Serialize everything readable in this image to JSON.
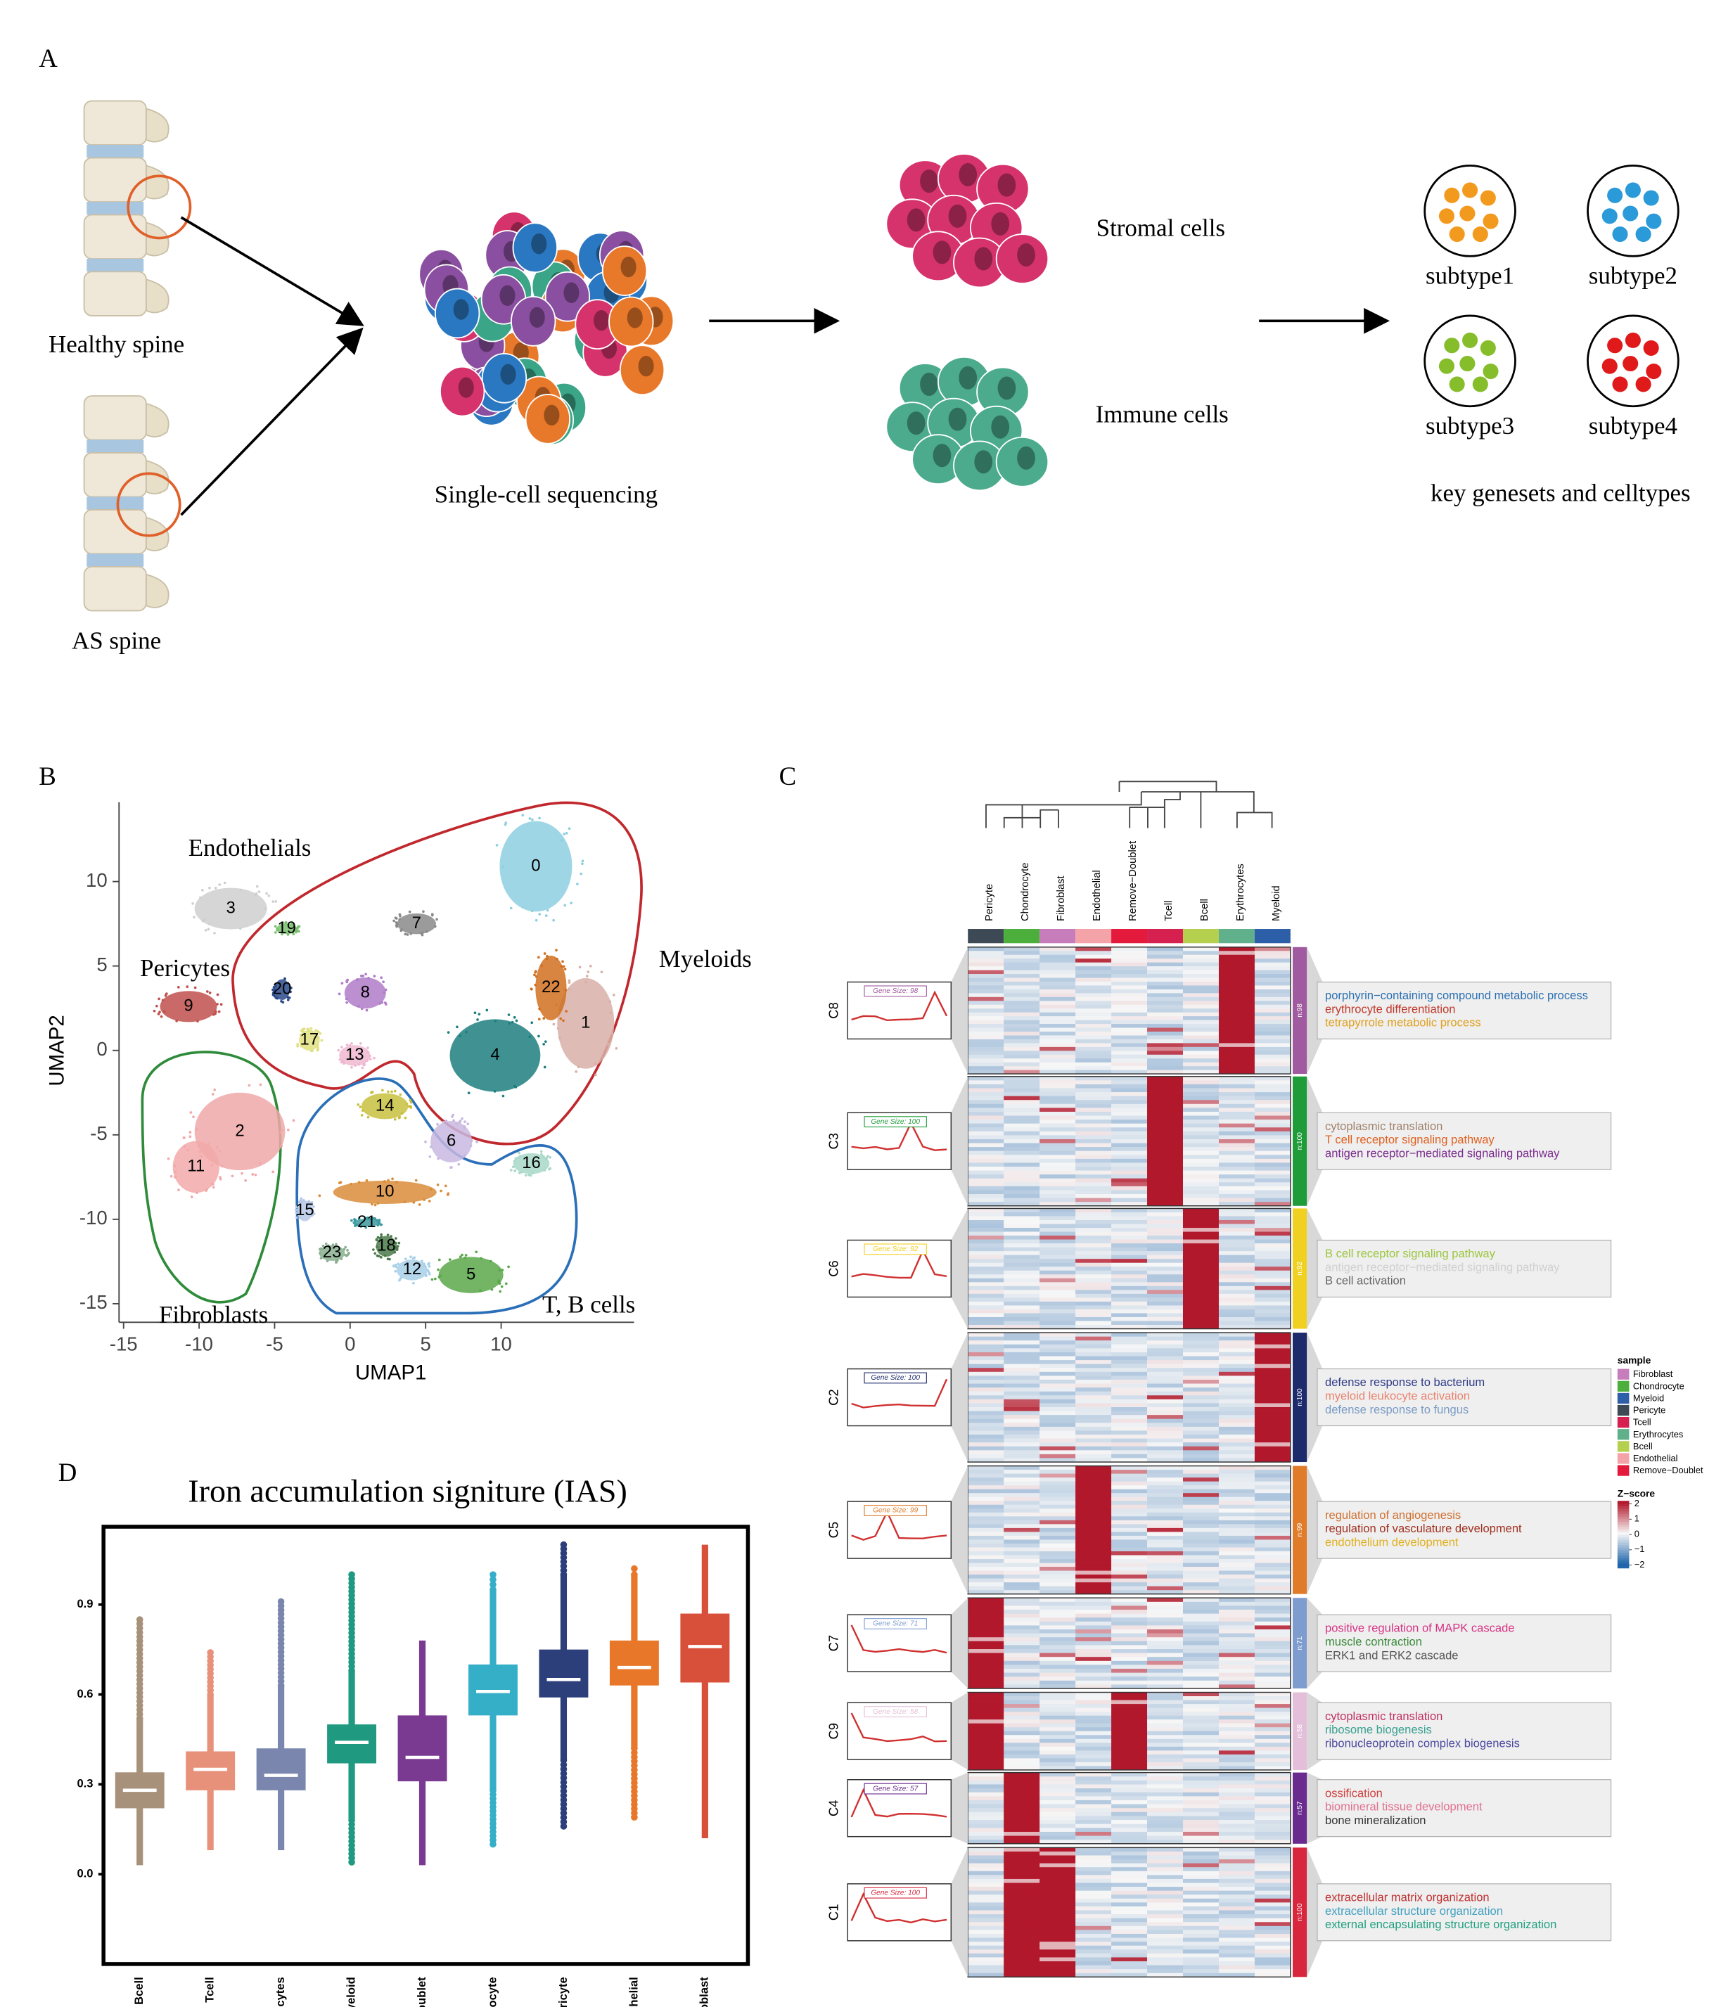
{
  "figure": {
    "panel_labels": {
      "a": "A",
      "b": "B",
      "c": "C",
      "d": "D"
    },
    "schematic": {
      "healthy": "Healthy spine",
      "as": "AS spine",
      "sequencing": "Single-cell sequencing",
      "stromal": "Stromal cells",
      "immune": "Immune cells",
      "subtypes": [
        "subtype1",
        "subtype2",
        "subtype3",
        "subtype4"
      ],
      "caption": "key genesets and celltypes"
    },
    "heatmap": {
      "columns": [
        "Pericyte",
        "Chondrocyte",
        "Fibroblast",
        "Endothelial",
        "Remove−Doublet",
        "Tcell",
        "Bcell",
        "Erythrocytes",
        "Myeloid"
      ],
      "column_colors": [
        "#3d4a55",
        "#4caf3c",
        "#c77cbb",
        "#f4a3a8",
        "#e41a3c",
        "#d6204f",
        "#b5cf4f",
        "#5fb08b",
        "#2d5fa8"
      ],
      "legend_title": "sample",
      "legend_items": [
        {
          "name": "Fibroblast",
          "color": "#c77cbb"
        },
        {
          "name": "Chondrocyte",
          "color": "#4caf3c"
        },
        {
          "name": "Myeloid",
          "color": "#2d5fa8"
        },
        {
          "name": "Pericyte",
          "color": "#3d4a55"
        },
        {
          "name": "Tcell",
          "color": "#d6204f"
        },
        {
          "name": "Erythrocytes",
          "color": "#5fb08b"
        },
        {
          "name": "Bcell",
          "color": "#b5cf4f"
        },
        {
          "name": "Endothelial",
          "color": "#f4a3a8"
        },
        {
          "name": "Remove−Doublet",
          "color": "#e41a3c"
        }
      ],
      "zscore_title": "Z−score",
      "zscore_lim": [
        -2.2,
        2.2
      ],
      "zscore_ticks": [
        2,
        1,
        0,
        {
          "value": -1,
          "label": "−1"
        },
        {
          "value": -2,
          "label": "−2"
        }
      ],
      "clusters": [
        {
          "name": "C8",
          "gene_size": "Gene Size: 98",
          "n": "n:98",
          "color": "#a05a9f",
          "terms": [
            {
              "text": "porphyrin−containing compound metabolic process",
              "color": "#2a6fb0"
            },
            {
              "text": "erythrocyte differentiation",
              "color": "#c0392b"
            },
            {
              "text": "tetrapyrrole metabolic process",
              "color": "#e0a020"
            }
          ]
        },
        {
          "name": "C3",
          "gene_size": "Gene Size: 100",
          "n": "n:100",
          "color": "#1f9b3a",
          "terms": [
            {
              "text": "cytoplasmic translation",
              "color": "#a0826d"
            },
            {
              "text": "T cell receptor signaling pathway",
              "color": "#e06020"
            },
            {
              "text": "antigen receptor−mediated signaling pathway",
              "color": "#7b2d8e"
            }
          ]
        },
        {
          "name": "C6",
          "gene_size": "Gene Size: 92",
          "n": "n:92",
          "color": "#f0d020",
          "terms": [
            {
              "text": "B cell receptor signaling pathway",
              "color": "#9bc53d"
            },
            {
              "text": "antigen receptor−mediated signaling pathway",
              "color": "#d0d0d0"
            },
            {
              "text": "B cell activation",
              "color": "#666666"
            }
          ]
        },
        {
          "name": "C2",
          "gene_size": "Gene Size: 100",
          "n": "n:100",
          "color": "#1d2a6b",
          "terms": [
            {
              "text": "defense response to bacterium",
              "color": "#2e3a87"
            },
            {
              "text": "myeloid leukocyte activation",
              "color": "#e8826e"
            },
            {
              "text": "defense response to fungus",
              "color": "#7a9cc6"
            }
          ]
        },
        {
          "name": "C5",
          "gene_size": "Gene Size: 99",
          "n": "n:99",
          "color": "#e07b2a",
          "terms": [
            {
              "text": "regulation of angiogenesis",
              "color": "#d07030"
            },
            {
              "text": "regulation of vasculature development",
              "color": "#a03020"
            },
            {
              "text": "endothelium development",
              "color": "#e0b020"
            }
          ]
        },
        {
          "name": "C7",
          "gene_size": "Gene Size: 71",
          "n": "n:71",
          "color": "#7f9ccf",
          "terms": [
            {
              "text": "positive regulation of MAPK cascade",
              "color": "#d63384"
            },
            {
              "text": "muscle contraction",
              "color": "#3a8a3a"
            },
            {
              "text": "ERK1 and ERK2 cascade",
              "color": "#555555"
            }
          ]
        },
        {
          "name": "C9",
          "gene_size": "Gene Size: 58",
          "n": "n:58",
          "color": "#e3bfd9",
          "terms": [
            {
              "text": "cytoplasmic translation",
              "color": "#c03060"
            },
            {
              "text": "ribosome biogenesis",
              "color": "#3aa090"
            },
            {
              "text": "ribonucleoprotein complex biogenesis",
              "color": "#4a4aa0"
            }
          ]
        },
        {
          "name": "C4",
          "gene_size": "Gene Size: 57",
          "n": "n:57",
          "color": "#6a2b8f",
          "terms": [
            {
              "text": "ossification",
              "color": "#d04040"
            },
            {
              "text": "biomineral tissue development",
              "color": "#e07090"
            },
            {
              "text": "bone mineralization",
              "color": "#333333"
            }
          ]
        },
        {
          "name": "C1",
          "gene_size": "Gene Size: 100",
          "n": "n:100",
          "color": "#d7263d",
          "terms": [
            {
              "text": "extracellular matrix organization",
              "color": "#c03030"
            },
            {
              "text": "extracellular structure organization",
              "color": "#40a0c0"
            },
            {
              "text": "external encapsulating structure organization",
              "color": "#20a080"
            }
          ]
        }
      ]
    }
  },
  "chart_data": [
    {
      "type": "scatter",
      "xlabel": "UMAP1",
      "ylabel": "UMAP2",
      "xlim": [
        -15.3,
        18.8
      ],
      "ylim": [
        -16.1,
        14.7
      ],
      "xticks": [
        -15,
        -10,
        -5,
        0,
        5,
        10
      ],
      "yticks": [
        -15,
        -10,
        -5,
        0,
        5,
        10
      ],
      "categories": [
        "0",
        "1",
        "2",
        "3",
        "4",
        "5",
        "6",
        "7",
        "8",
        "9",
        "10",
        "11",
        "12",
        "13",
        "14",
        "15",
        "16",
        "17",
        "18",
        "19",
        "20",
        "21",
        "22",
        "23"
      ],
      "x": [
        12.3,
        15.6,
        -7.3,
        -7.9,
        9.6,
        8.0,
        6.7,
        4.4,
        1.0,
        -10.7,
        2.3,
        -10.2,
        4.1,
        0.3,
        2.3,
        -3.0,
        12.0,
        -2.7,
        2.4,
        -4.2,
        -4.5,
        1.1,
        13.3,
        -1.2
      ],
      "values": [
        10.9,
        1.6,
        -4.8,
        8.4,
        -0.3,
        -13.3,
        -5.4,
        7.5,
        3.4,
        2.6,
        -8.4,
        -6.9,
        -13.0,
        -0.3,
        -3.3,
        -9.5,
        -6.7,
        0.6,
        -11.6,
        7.2,
        3.6,
        -10.2,
        3.7,
        -12.0
      ],
      "colors": [
        "#8ecfe0",
        "#d8b0a8",
        "#f0a8a8",
        "#cfcfcf",
        "#1e7f7f",
        "#5aa84a",
        "#c8b8e0",
        "#8a8a8a",
        "#b07cc8",
        "#c0504d",
        "#d98c3a",
        "#f2a9a9",
        "#a8d0e8",
        "#f0b8d0",
        "#c8c040",
        "#b8c8e8",
        "#a8d8c8",
        "#e0e080",
        "#4a7a4a",
        "#7ac070",
        "#2a4a8a",
        "#3a9aa0",
        "#d07020",
        "#8ab090"
      ],
      "annotations": [
        "Endothelials",
        "Pericytes",
        "Myeloids",
        "Fibroblasts",
        "T, B cells"
      ]
    },
    {
      "type": "box",
      "title": "Iron accumulation signiture (IAS)",
      "categories": [
        "Bcell",
        "Tcell",
        "Erythrocytes",
        "Myeloid",
        "Remove-Doublet",
        "Chondrocyte",
        "Pericyte",
        "Endothelial",
        "Fibroblast"
      ],
      "colors": [
        "#a8917a",
        "#e8917a",
        "#7a86ad",
        "#1f9a80",
        "#7b3a92",
        "#35aec8",
        "#2d3f7a",
        "#e8772a",
        "#d9503a"
      ],
      "low": [
        0.03,
        0.08,
        0.08,
        0.18,
        0.03,
        0.28,
        0.38,
        0.42,
        0.12
      ],
      "q1": [
        0.22,
        0.28,
        0.28,
        0.37,
        0.31,
        0.53,
        0.59,
        0.63,
        0.64
      ],
      "median": [
        0.28,
        0.35,
        0.33,
        0.44,
        0.39,
        0.61,
        0.65,
        0.69,
        0.76
      ],
      "q3": [
        0.34,
        0.41,
        0.42,
        0.5,
        0.53,
        0.7,
        0.75,
        0.78,
        0.87
      ],
      "high": [
        0.52,
        0.6,
        0.63,
        0.68,
        0.78,
        0.95,
        1.0,
        1.0,
        1.1
      ],
      "outlier_low": [
        null,
        null,
        null,
        0.04,
        null,
        0.1,
        0.16,
        0.19,
        null
      ],
      "outlier_high": [
        0.85,
        0.74,
        0.91,
        1.0,
        null,
        1.0,
        1.1,
        1.02,
        null
      ],
      "ylim": [
        -0.3,
        1.16
      ],
      "yticks": [
        {
          "value": 0,
          "label": "0.0"
        },
        0.3,
        0.6,
        0.9
      ]
    }
  ]
}
